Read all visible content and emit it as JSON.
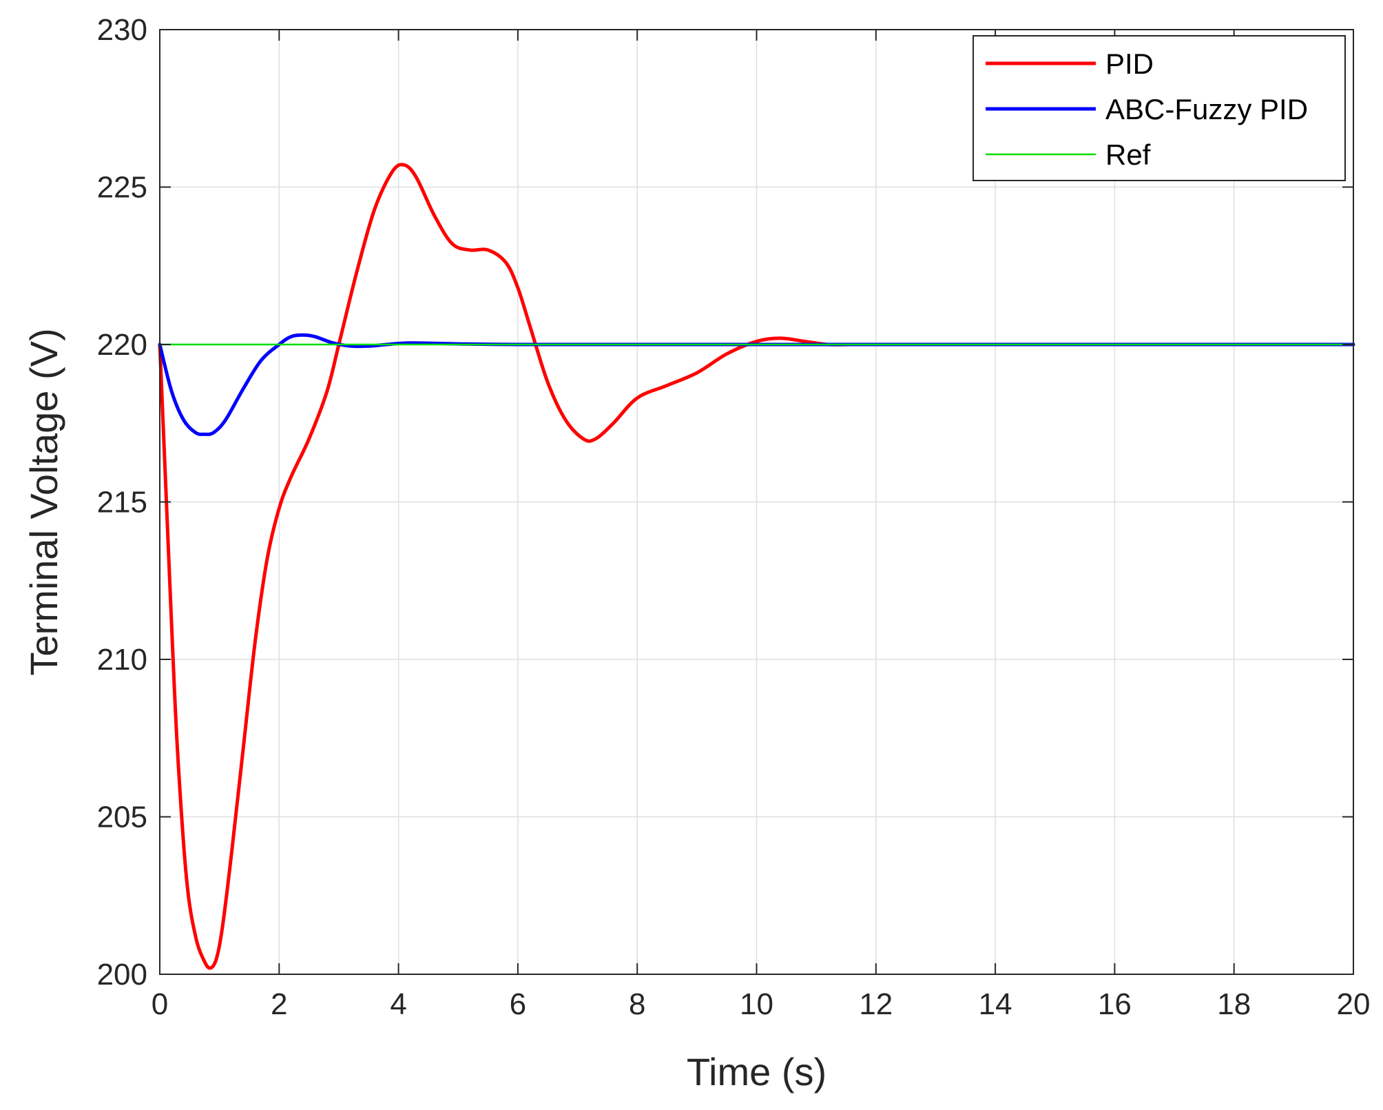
{
  "chart_data": {
    "type": "line",
    "title": "",
    "xlabel": "Time (s)",
    "ylabel": "Terminal Voltage (V)",
    "xlim": [
      0,
      20
    ],
    "ylim": [
      200,
      230
    ],
    "xticks": [
      0,
      2,
      4,
      6,
      8,
      10,
      12,
      14,
      16,
      18,
      20
    ],
    "yticks": [
      200,
      205,
      210,
      215,
      220,
      225,
      230
    ],
    "xtick_labels": [
      "0",
      "2",
      "4",
      "6",
      "8",
      "10",
      "12",
      "14",
      "16",
      "18",
      "20"
    ],
    "ytick_labels": [
      "200",
      "205",
      "210",
      "215",
      "220",
      "225",
      "230"
    ],
    "grid": true,
    "legend_position": "top-right",
    "series": [
      {
        "name": "PID",
        "color": "#ff0000",
        "x": [
          0,
          0.1,
          0.2,
          0.3,
          0.45,
          0.6,
          0.75,
          0.85,
          0.95,
          1.05,
          1.2,
          1.4,
          1.6,
          1.8,
          2.0,
          2.2,
          2.5,
          2.8,
          3.0,
          3.3,
          3.6,
          3.9,
          4.1,
          4.3,
          4.6,
          4.9,
          5.2,
          5.5,
          5.8,
          6.0,
          6.2,
          6.5,
          6.8,
          7.1,
          7.3,
          7.6,
          8.0,
          8.5,
          9.0,
          9.5,
          10.0,
          10.4,
          10.8,
          11.2,
          11.6,
          12.0,
          13.0,
          14.0,
          16.0,
          18.0,
          20.0
        ],
        "values": [
          220,
          215.5,
          211.0,
          207.0,
          203.0,
          201.2,
          200.4,
          200.2,
          200.5,
          201.5,
          203.8,
          207.2,
          210.6,
          213.2,
          214.8,
          215.8,
          217.0,
          218.5,
          220.0,
          222.3,
          224.3,
          225.5,
          225.7,
          225.3,
          224.1,
          223.2,
          223.0,
          223.0,
          222.6,
          221.8,
          220.6,
          218.8,
          217.6,
          217.0,
          217.0,
          217.5,
          218.3,
          218.7,
          219.1,
          219.7,
          220.1,
          220.2,
          220.1,
          220.0,
          220.0,
          220.0,
          220.0,
          220.0,
          220.0,
          220.0,
          220.0
        ]
      },
      {
        "name": "ABC-Fuzzy PID",
        "color": "#0000ff",
        "x": [
          0,
          0.2,
          0.4,
          0.6,
          0.75,
          0.9,
          1.1,
          1.4,
          1.7,
          2.0,
          2.2,
          2.4,
          2.6,
          2.9,
          3.2,
          3.5,
          3.8,
          4.2,
          5.0,
          6.0,
          8.0,
          10.0,
          12.0,
          14.0,
          16.0,
          18.0,
          20.0
        ],
        "values": [
          220,
          218.5,
          217.6,
          217.2,
          217.15,
          217.2,
          217.6,
          218.6,
          219.5,
          220.0,
          220.25,
          220.3,
          220.25,
          220.05,
          219.95,
          219.95,
          220.0,
          220.05,
          220.02,
          220.0,
          220.0,
          220.0,
          220.0,
          220.0,
          220.0,
          220.0,
          220.0
        ]
      },
      {
        "name": "Ref",
        "color": "#00dd00",
        "x": [
          0,
          20
        ],
        "values": [
          220,
          220
        ]
      }
    ]
  }
}
